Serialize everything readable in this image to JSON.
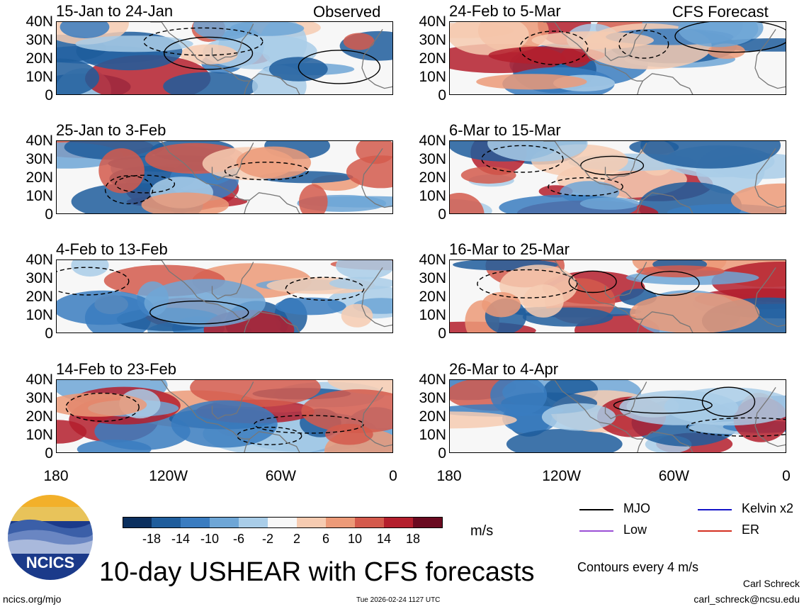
{
  "chart_data": {
    "type": "heatmap",
    "title": "10-day USHEAR with CFS forecasts",
    "variable": "USHEAR",
    "units": "m/s",
    "contour_note": "Contours every 4 m/s",
    "observed_label": "Observed",
    "forecast_label": "CFS Forecast",
    "y_ticks": [
      "40N",
      "30N",
      "20N",
      "10N",
      "0"
    ],
    "x_ticks": [
      "180",
      "120W",
      "60W",
      "0"
    ],
    "lon_range": [
      -180,
      0
    ],
    "lat_range": [
      0,
      40
    ],
    "colorbar": {
      "labels": [
        "-18",
        "-14",
        "-10",
        "-6",
        "-2",
        "2",
        "6",
        "10",
        "14",
        "18"
      ],
      "colors": [
        "#0b2f5e",
        "#1f5d9c",
        "#3a7cc0",
        "#6ea6d6",
        "#a9cde8",
        "#f7f7f7",
        "#f6cbb1",
        "#ec9a78",
        "#d45a4c",
        "#b41f2d",
        "#6a0a20"
      ]
    },
    "legend": [
      {
        "label": "MJO",
        "color": "#000000"
      },
      {
        "label": "Kelvin x2",
        "color": "#1414c8"
      },
      {
        "label": "Low",
        "color": "#9b4fd6"
      },
      {
        "label": "ER",
        "color": "#d43020"
      }
    ],
    "panels": [
      {
        "label": "15-Jan to 24-Jan",
        "col": 0,
        "row": 0
      },
      {
        "label": "25-Jan to 3-Feb",
        "col": 0,
        "row": 1
      },
      {
        "label": "4-Feb to 13-Feb",
        "col": 0,
        "row": 2
      },
      {
        "label": "14-Feb to 23-Feb",
        "col": 0,
        "row": 3
      },
      {
        "label": "24-Feb to 5-Mar",
        "col": 1,
        "row": 0
      },
      {
        "label": "6-Mar to 15-Mar",
        "col": 1,
        "row": 1
      },
      {
        "label": "16-Mar to 25-Mar",
        "col": 1,
        "row": 2
      },
      {
        "label": "26-Mar to 4-Apr",
        "col": 1,
        "row": 3
      }
    ]
  },
  "logo": {
    "text": "NCICS"
  },
  "footer": {
    "url": "ncics.org/mjo",
    "timestamp": "Tue 2026-02-24 1127 UTC",
    "author": "Carl Schreck",
    "email": "carl_schreck@ncsu.edu"
  }
}
